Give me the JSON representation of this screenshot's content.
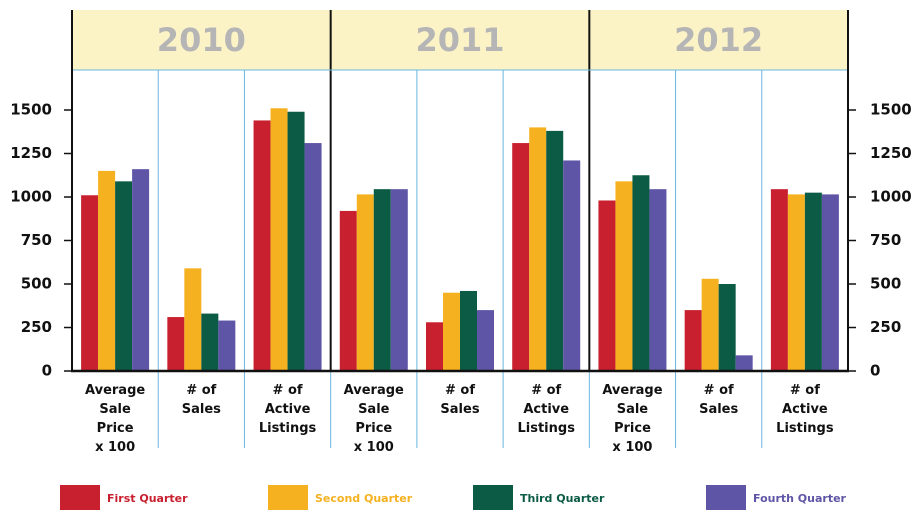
{
  "chart_data": {
    "type": "bar",
    "groups": [
      "2010",
      "2011",
      "2012"
    ],
    "categories": [
      "Average\nSale\nPrice\nx 100",
      "# of\nSales",
      "# of\nActive\nListings",
      "Average\nSale\nPrice\nx 100",
      "# of\nSales",
      "# of\nActive\nListings",
      "Average\nSale\nPrice\nx 100",
      "# of\nSales",
      "# of\nActive\nListings"
    ],
    "series": [
      {
        "name": "First Quarter",
        "color": "#c8202f",
        "values": [
          1010,
          310,
          1440,
          920,
          280,
          1310,
          980,
          350,
          1045
        ]
      },
      {
        "name": "Second Quarter",
        "color": "#f5b11f",
        "values": [
          1150,
          590,
          1510,
          1015,
          450,
          1400,
          1090,
          530,
          1015
        ]
      },
      {
        "name": "Third Quarter",
        "color": "#0b5b45",
        "values": [
          1090,
          330,
          1490,
          1045,
          460,
          1380,
          1125,
          500,
          1025
        ]
      },
      {
        "name": "Fourth Quarter",
        "color": "#5f55a6",
        "values": [
          1160,
          290,
          1310,
          1045,
          350,
          1210,
          1045,
          90,
          1015
        ]
      }
    ],
    "ylim": [
      0,
      1500
    ],
    "yticks": [
      0,
      250,
      500,
      750,
      1000,
      1250,
      1500
    ]
  }
}
